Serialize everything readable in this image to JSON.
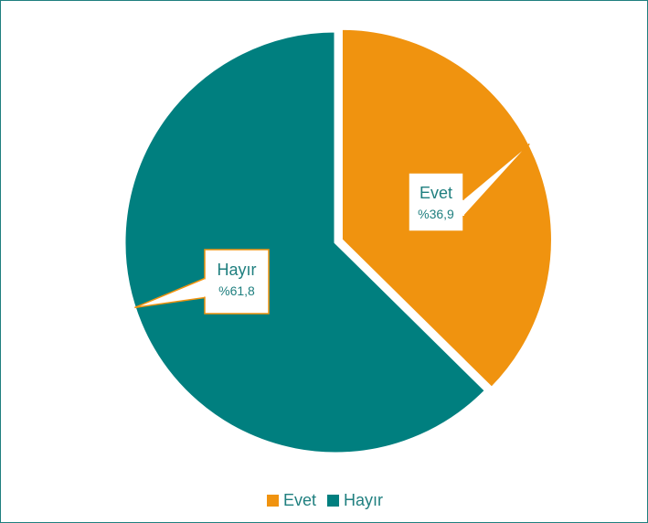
{
  "chart_data": {
    "type": "pie",
    "categories": [
      "Evet",
      "Hayır"
    ],
    "values": [
      36.9,
      61.8
    ],
    "data_labels": [
      {
        "name": "Evet",
        "value": "%36,9"
      },
      {
        "name": "Hayır",
        "value": "%61,8"
      }
    ],
    "colors": [
      "#f0930f",
      "#007f7f"
    ],
    "label_color": "#1f7f7f",
    "label_border_color": "#f0930f",
    "legend": "bottom"
  }
}
